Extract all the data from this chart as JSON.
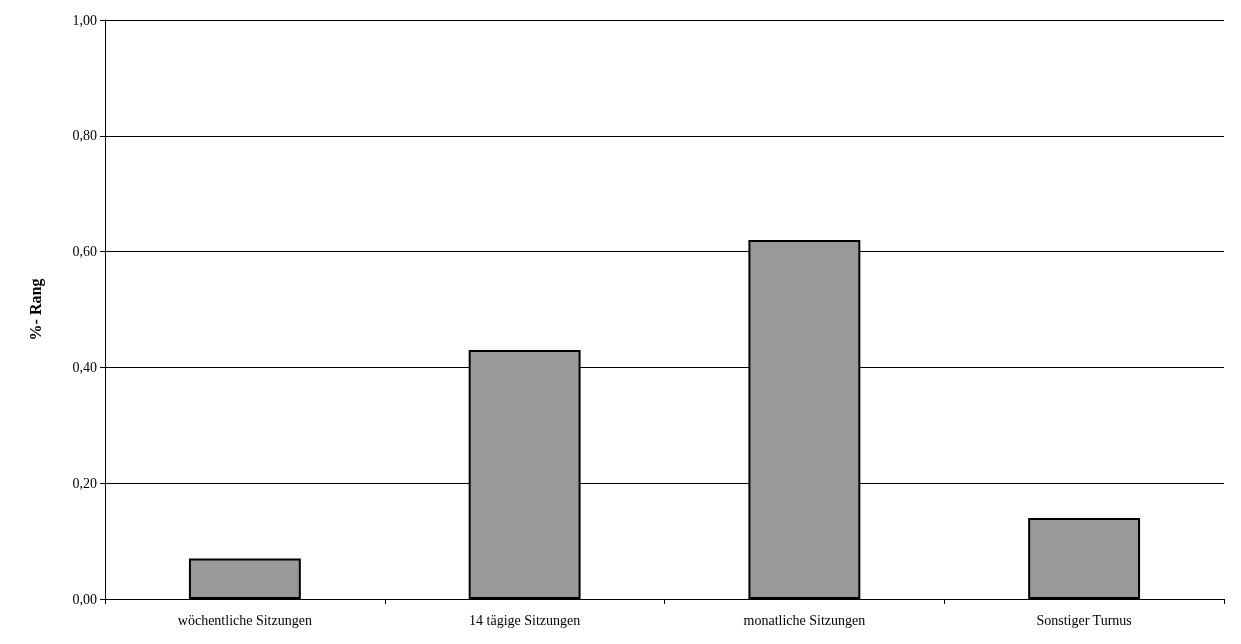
{
  "chart_data": {
    "type": "bar",
    "ylabel": "%- Rang",
    "categories": [
      "wöchentliche Sitzungen",
      "14 tägige Sitzungen",
      "monatliche Sitzungen",
      "Sonstiger Turnus"
    ],
    "values": [
      0.07,
      0.43,
      0.62,
      0.14
    ],
    "color": "#999999",
    "ylim": [
      0,
      1
    ],
    "yticks": [
      {
        "value": 0,
        "label": "0,00"
      },
      {
        "value": 0.2,
        "label": "0,20"
      },
      {
        "value": 0.4,
        "label": "0,40"
      },
      {
        "value": 0.6,
        "label": "0,60"
      },
      {
        "value": 0.8,
        "label": "0,80"
      },
      {
        "value": 1,
        "label": "1,00"
      }
    ],
    "grid": "y"
  }
}
